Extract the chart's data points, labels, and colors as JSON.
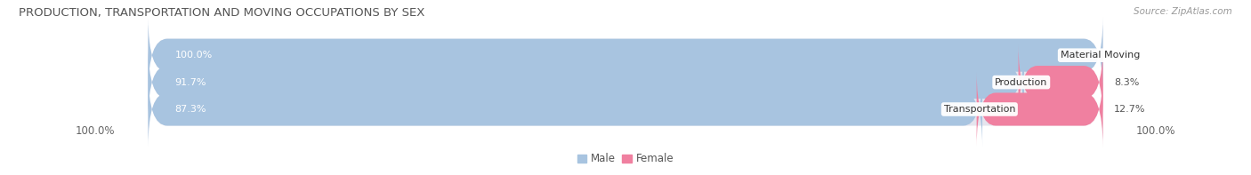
{
  "title": "PRODUCTION, TRANSPORTATION AND MOVING OCCUPATIONS BY SEX",
  "source": "Source: ZipAtlas.com",
  "categories": [
    "Material Moving",
    "Production",
    "Transportation"
  ],
  "male_values": [
    100.0,
    91.7,
    87.3
  ],
  "female_values": [
    0.0,
    8.3,
    12.7
  ],
  "male_color": "#a8c4e0",
  "female_color": "#f080a0",
  "bar_bg_color": "#e5e5ee",
  "title_fontsize": 9.5,
  "source_fontsize": 7.5,
  "tick_fontsize": 8.5,
  "bar_label_fontsize": 8,
  "cat_label_fontsize": 8,
  "figsize": [
    14.06,
    1.97
  ],
  "dpi": 100
}
